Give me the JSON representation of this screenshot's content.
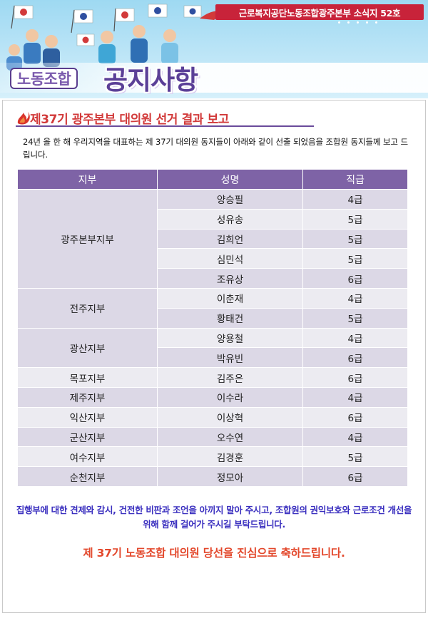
{
  "banner": {
    "issue_label": "근로복지공단노동조합광주본부 소식지 52호",
    "title_small": "노동조합",
    "title_large": "공지사항",
    "colors": {
      "issue_bar": "#c8233a",
      "title": "#5b3f97"
    }
  },
  "section": {
    "title": "제37기 광주본부 대의원 선거 결과 보고",
    "icon": "flame-icon"
  },
  "intro": "24년 올 한 해 우리지역을 대표하는 제 37기 대의원 동지들이 아래와 같이 선출 되었음을 조합원 동지들께 보고 드립니다.",
  "table": {
    "headers": [
      "지부",
      "성명",
      "직급"
    ],
    "groups": [
      {
        "branch": "광주본부지부",
        "members": [
          {
            "name": "양승필",
            "grade": "4급"
          },
          {
            "name": "성유송",
            "grade": "5급"
          },
          {
            "name": "김희언",
            "grade": "5급"
          },
          {
            "name": "심민석",
            "grade": "5급"
          },
          {
            "name": "조유상",
            "grade": "6급"
          }
        ]
      },
      {
        "branch": "전주지부",
        "members": [
          {
            "name": "이춘재",
            "grade": "4급"
          },
          {
            "name": "황태건",
            "grade": "5급"
          }
        ]
      },
      {
        "branch": "광산지부",
        "members": [
          {
            "name": "양용철",
            "grade": "4급"
          },
          {
            "name": "박유빈",
            "grade": "6급"
          }
        ]
      },
      {
        "branch": "목포지부",
        "members": [
          {
            "name": "김주은",
            "grade": "6급"
          }
        ]
      },
      {
        "branch": "제주지부",
        "members": [
          {
            "name": "이수라",
            "grade": "4급"
          }
        ]
      },
      {
        "branch": "익산지부",
        "members": [
          {
            "name": "이상혁",
            "grade": "6급"
          }
        ]
      },
      {
        "branch": "군산지부",
        "members": [
          {
            "name": "오수연",
            "grade": "4급"
          }
        ]
      },
      {
        "branch": "여수지부",
        "members": [
          {
            "name": "김경훈",
            "grade": "5급"
          }
        ]
      },
      {
        "branch": "순천지부",
        "members": [
          {
            "name": "정모아",
            "grade": "6급"
          }
        ]
      }
    ]
  },
  "note": "집행부에 대한 견제와 감시, 건전한 비판과 조언을 아끼지 말아 주시고, 조합원의 권익보호와 근로조건 개선을 위해 함께 걸어가 주시길 부탁드립니다.",
  "congrats": "제 37기 노동조합 대의원 당선을 진심으로 축하드립니다."
}
